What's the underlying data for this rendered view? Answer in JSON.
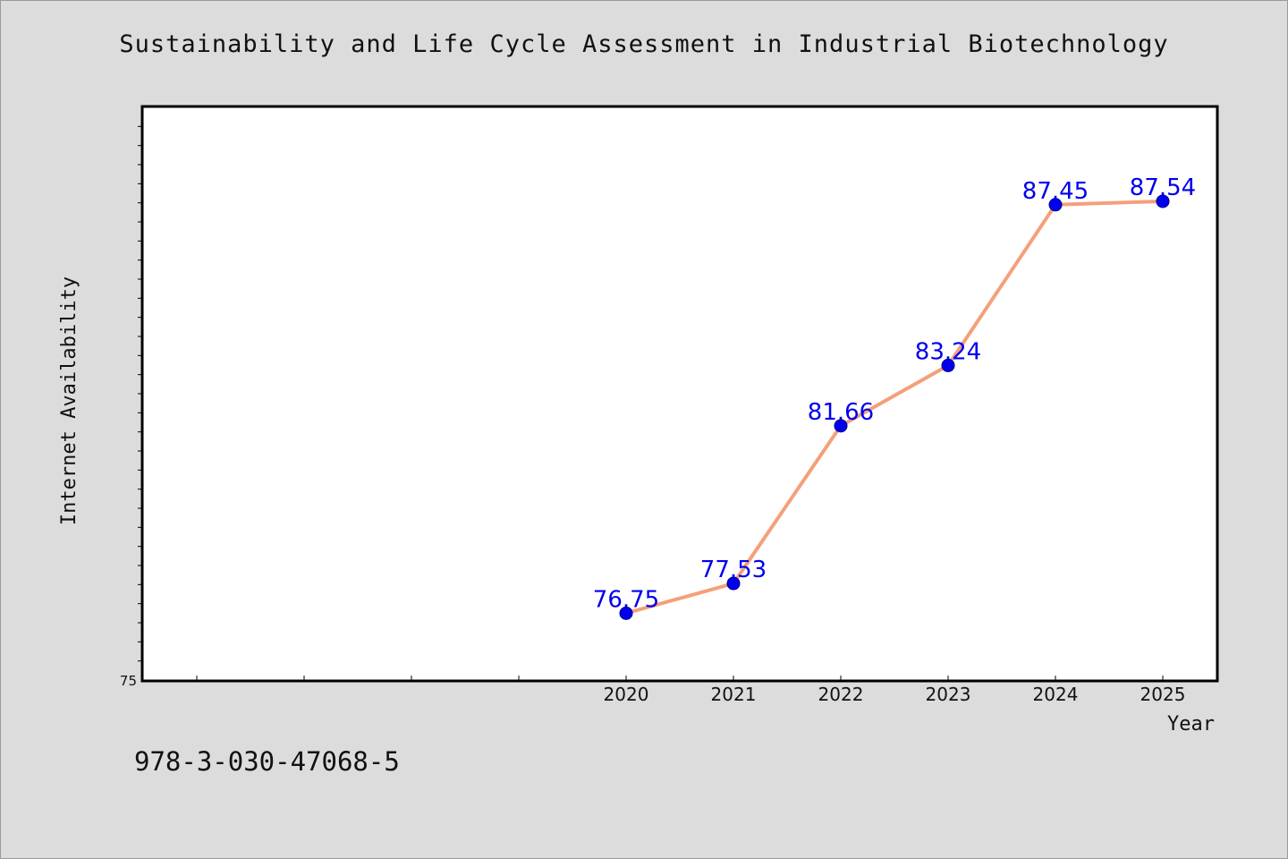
{
  "page": {
    "background": "#dcdcdc",
    "footer_text": "978-3-030-47068-5"
  },
  "chart_data": {
    "type": "line",
    "title": "Sustainability and Life Cycle Assessment in Industrial Biotechnology",
    "xlabel": "Year",
    "ylabel": "Internet Availability",
    "x_tick_labels": [
      "2020",
      "2021",
      "2022",
      "2023",
      "2024",
      "2025"
    ],
    "xlim": [
      2015.5,
      2025.5
    ],
    "ylim": [
      75,
      90
    ],
    "y_tick_labels": [
      "75"
    ],
    "series": [
      {
        "x": [
          2020,
          2021,
          2022,
          2023,
          2024,
          2025
        ],
        "values": [
          76.75,
          77.53,
          81.66,
          83.24,
          87.45,
          87.54
        ],
        "line_color": "#f4a07a",
        "marker_color": "#0000ee",
        "label_color": "#0000ee"
      }
    ],
    "data_labels": [
      "76.75",
      "77.53",
      "81.66",
      "83.24",
      "87.45",
      "87.54"
    ],
    "grid": false,
    "legend": "none"
  }
}
